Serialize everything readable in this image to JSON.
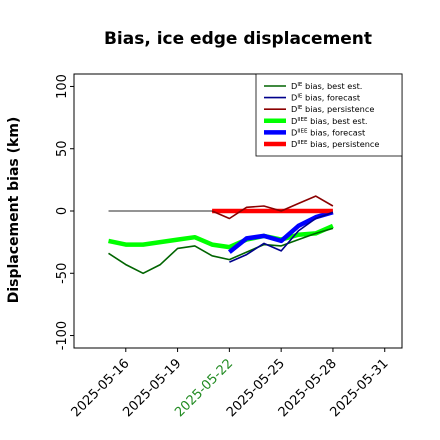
{
  "chart_data": {
    "type": "line",
    "title": "Bias, ice edge displacement",
    "xlabel": "",
    "ylabel": "Displacement bias (km)",
    "ylim": [
      -110,
      110
    ],
    "xlim": [
      "2025-05-13",
      "2025-06-01"
    ],
    "y_ticks": [
      -100,
      -50,
      0,
      50,
      100
    ],
    "x_ticks": [
      {
        "date": "2025-05-16",
        "label": "2025-05-16",
        "color": "#000000"
      },
      {
        "date": "2025-05-19",
        "label": "2025-05-19",
        "color": "#000000"
      },
      {
        "date": "2025-05-22",
        "label": "2025-05-22",
        "color": "#228B22"
      },
      {
        "date": "2025-05-25",
        "label": "2025-05-25",
        "color": "#000000"
      },
      {
        "date": "2025-05-28",
        "label": "2025-05-28",
        "color": "#000000"
      },
      {
        "date": "2025-05-31",
        "label": "2025-05-31",
        "color": "#000000"
      }
    ],
    "grid": false,
    "legend_position": "top-right",
    "zero_line": {
      "x": [
        "2025-05-15",
        "2025-05-28"
      ],
      "y": 0,
      "color": "#555555"
    },
    "series": [
      {
        "name": "D^IE bias, best est.",
        "legend_base": "D",
        "legend_sup": "IE",
        "legend_rest": " bias, best est.",
        "color": "#006400",
        "width": 1.6,
        "x": [
          "2025-05-15",
          "2025-05-16",
          "2025-05-17",
          "2025-05-18",
          "2025-05-19",
          "2025-05-20",
          "2025-05-21",
          "2025-05-22",
          "2025-05-23",
          "2025-05-24",
          "2025-05-25",
          "2025-05-26",
          "2025-05-27",
          "2025-05-28"
        ],
        "y": [
          -34,
          -43,
          -50,
          -43,
          -30,
          -28,
          -36,
          -39,
          -33,
          -27,
          -28,
          -23,
          -18,
          -14
        ]
      },
      {
        "name": "D^IE bias, forecast",
        "legend_base": "D",
        "legend_sup": "IE",
        "legend_rest": " bias, forecast",
        "color": "#00008B",
        "width": 1.6,
        "x": [
          "2025-05-22",
          "2025-05-23",
          "2025-05-24",
          "2025-05-25",
          "2025-05-26",
          "2025-05-27",
          "2025-05-28"
        ],
        "y": [
          -41,
          -35,
          -26,
          -32,
          -16,
          -6,
          -1
        ]
      },
      {
        "name": "D^IE bias, persistence",
        "legend_base": "D",
        "legend_sup": "IE",
        "legend_rest": " bias, persistence",
        "color": "#8B0000",
        "width": 1.6,
        "x": [
          "2025-05-21",
          "2025-05-22",
          "2025-05-23",
          "2025-05-24",
          "2025-05-25",
          "2025-05-26",
          "2025-05-27",
          "2025-05-28"
        ],
        "y": [
          0,
          -6,
          3,
          4,
          0,
          6,
          12,
          4
        ]
      },
      {
        "name": "D^IIEE bias, best est.",
        "legend_base": "D",
        "legend_sup": "IIEE",
        "legend_rest": " bias, best est.",
        "color": "#00FF00",
        "width": 4.5,
        "x": [
          "2025-05-15",
          "2025-05-16",
          "2025-05-17",
          "2025-05-18",
          "2025-05-19",
          "2025-05-20",
          "2025-05-21",
          "2025-05-22",
          "2025-05-23",
          "2025-05-24",
          "2025-05-25",
          "2025-05-26",
          "2025-05-27",
          "2025-05-28"
        ],
        "y": [
          -24,
          -27,
          -27,
          -25,
          -23,
          -21,
          -27,
          -29,
          -23,
          -20,
          -23,
          -19,
          -18,
          -12
        ]
      },
      {
        "name": "D^IIEE bias, forecast",
        "legend_base": "D",
        "legend_sup": "IIEE",
        "legend_rest": " bias, forecast",
        "color": "#0000FF",
        "width": 4.5,
        "x": [
          "2025-05-22",
          "2025-05-23",
          "2025-05-24",
          "2025-05-25",
          "2025-05-26",
          "2025-05-27",
          "2025-05-28"
        ],
        "y": [
          -33,
          -22,
          -20,
          -24,
          -12,
          -5,
          -1
        ]
      },
      {
        "name": "D^IIEE bias, persistence",
        "legend_base": "D",
        "legend_sup": "IIEE",
        "legend_rest": " bias, persistence",
        "color": "#FF0000",
        "width": 4.5,
        "x": [
          "2025-05-21",
          "2025-05-22",
          "2025-05-23",
          "2025-05-24",
          "2025-05-25",
          "2025-05-26",
          "2025-05-27",
          "2025-05-28"
        ],
        "y": [
          0,
          0,
          0,
          0,
          0,
          0,
          0,
          0
        ]
      }
    ]
  }
}
